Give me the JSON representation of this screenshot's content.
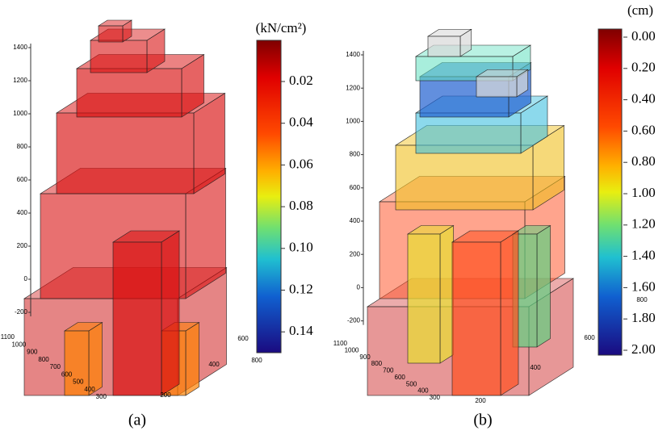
{
  "panels": [
    {
      "label": "(a)",
      "colorbar": {
        "unit": "(kN/cm²)",
        "ticks": [
          "0.02",
          "0.04",
          "0.06",
          "0.08",
          "0.10",
          "0.12",
          "0.14"
        ]
      },
      "z_ticks": [
        "1400",
        "1200",
        "1000",
        "800",
        "600",
        "400",
        "200",
        "0",
        "-200"
      ],
      "y_ticks": [
        "1100",
        "1000",
        "900",
        "800",
        "700",
        "600",
        "500",
        "400",
        "300"
      ],
      "x_ticks": [
        "200",
        "400",
        "600",
        "800"
      ]
    },
    {
      "label": "(b)",
      "colorbar": {
        "unit": "(cm)",
        "ticks": [
          "0.00",
          "0.20",
          "0.40",
          "0.60",
          "0.80",
          "1.00",
          "1.20",
          "1.40",
          "1.60",
          "1.80",
          "2.00"
        ]
      },
      "z_ticks": [
        "1400",
        "1200",
        "1000",
        "800",
        "600",
        "400",
        "200",
        "0",
        "-200"
      ],
      "y_ticks": [
        "1100",
        "1000",
        "900",
        "800",
        "700",
        "600",
        "500",
        "400",
        "300"
      ],
      "x_ticks": [
        "200",
        "400",
        "600",
        "800"
      ]
    }
  ]
}
